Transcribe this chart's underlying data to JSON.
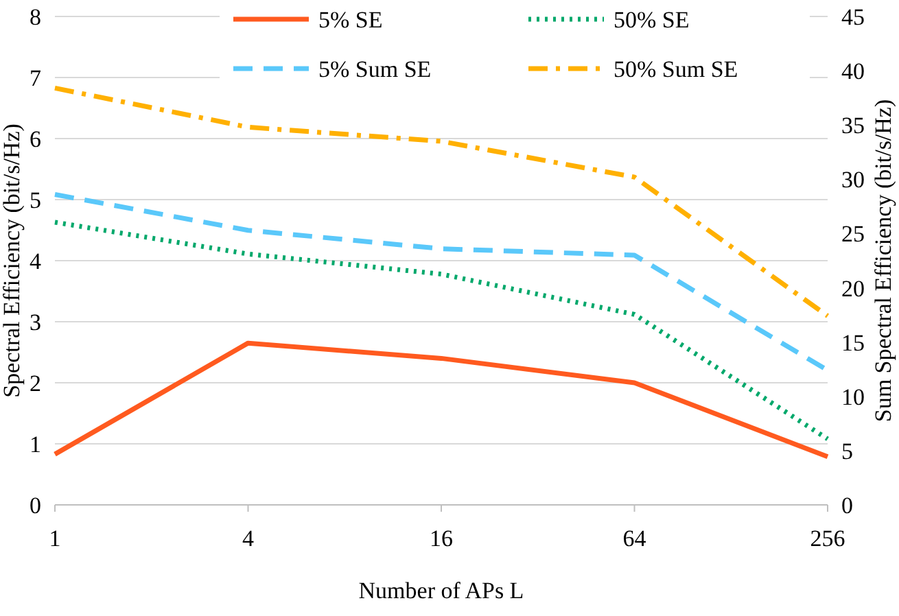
{
  "chart_data": {
    "type": "line",
    "xlabel": "Number of APs L",
    "ylabel": "Spectral Efficiency (bit/s/Hz)",
    "y2label": "Sum Spectral Efficiency (bit/s/Hz)",
    "categories": [
      "1",
      "4",
      "16",
      "64",
      "256"
    ],
    "series": [
      {
        "name": "5% SE",
        "color": "#ff5a1f",
        "line_style": "solid",
        "values": [
          0.83,
          2.65,
          2.4,
          2.0,
          0.79
        ]
      },
      {
        "name": "50% SE",
        "color": "#00a86b",
        "line_style": "dotted",
        "values": [
          4.63,
          4.11,
          3.78,
          3.12,
          1.08
        ]
      },
      {
        "name": "5% Sum SE",
        "color": "#5ac8fa",
        "line_style": "dashed",
        "axis": "y2",
        "values": [
          28.6,
          25.3,
          23.6,
          23.0,
          12.4
        ]
      },
      {
        "name": "50% Sum SE",
        "color": "#ffb000",
        "line_style": "dashdot",
        "axis": "y2",
        "values": [
          38.4,
          34.8,
          33.5,
          30.2,
          17.4
        ]
      }
    ],
    "ylim": [
      0,
      8
    ],
    "yticks": [
      0,
      1,
      2,
      3,
      4,
      5,
      6,
      7,
      8
    ],
    "y2lim": [
      0,
      45
    ],
    "y2ticks": [
      0,
      5,
      10,
      15,
      20,
      25,
      30,
      35,
      40,
      45
    ],
    "grid": "y",
    "legend": "top",
    "marker": "none"
  }
}
